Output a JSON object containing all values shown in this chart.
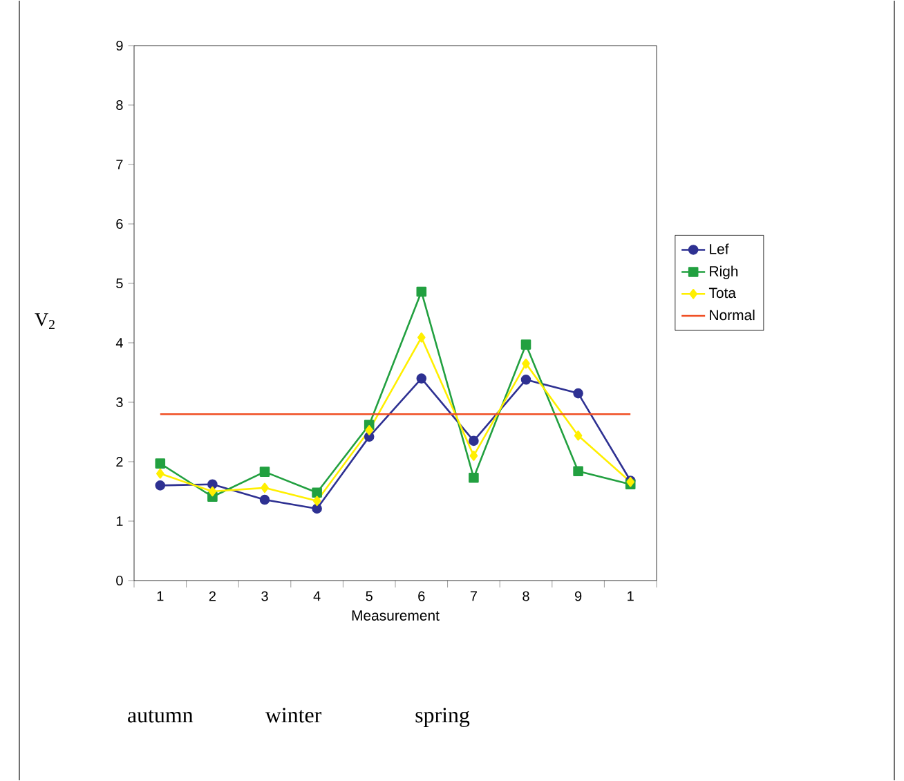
{
  "chart_data": {
    "type": "line",
    "xlabel": "Measurement",
    "ylabel": "V$_{2}$",
    "categories": [
      "1",
      "2",
      "3",
      "4",
      "5",
      "6",
      "7",
      "8",
      "9",
      "1"
    ],
    "ylim": [
      0,
      9
    ],
    "yticks": [
      0,
      1,
      2,
      3,
      4,
      5,
      6,
      7,
      8,
      9
    ],
    "legend": "right",
    "line_style": "solid",
    "annotations": [
      "autumn",
      "winter",
      "spring"
    ],
    "series": [
      {
        "name": "Lef",
        "color": "#2e3192",
        "marker": "circle",
        "values": [
          1.6,
          1.62,
          1.36,
          1.21,
          2.42,
          3.4,
          2.35,
          3.38,
          3.15,
          1.68
        ]
      },
      {
        "name": "Righ",
        "color": "#22a040",
        "marker": "square",
        "values": [
          1.97,
          1.41,
          1.83,
          1.48,
          2.62,
          4.86,
          1.73,
          3.97,
          1.84,
          1.62
        ]
      },
      {
        "name": "Tota",
        "color": "#ffef00",
        "marker": "diamond",
        "values": [
          1.8,
          1.5,
          1.56,
          1.34,
          2.53,
          4.09,
          2.1,
          3.65,
          2.44,
          1.66
        ]
      },
      {
        "name": "Normal",
        "color": "#f04e23",
        "marker": "none",
        "values": [
          2.8,
          2.8,
          2.8,
          2.8,
          2.8,
          2.8,
          2.8,
          2.8,
          2.8,
          2.8
        ]
      }
    ]
  }
}
